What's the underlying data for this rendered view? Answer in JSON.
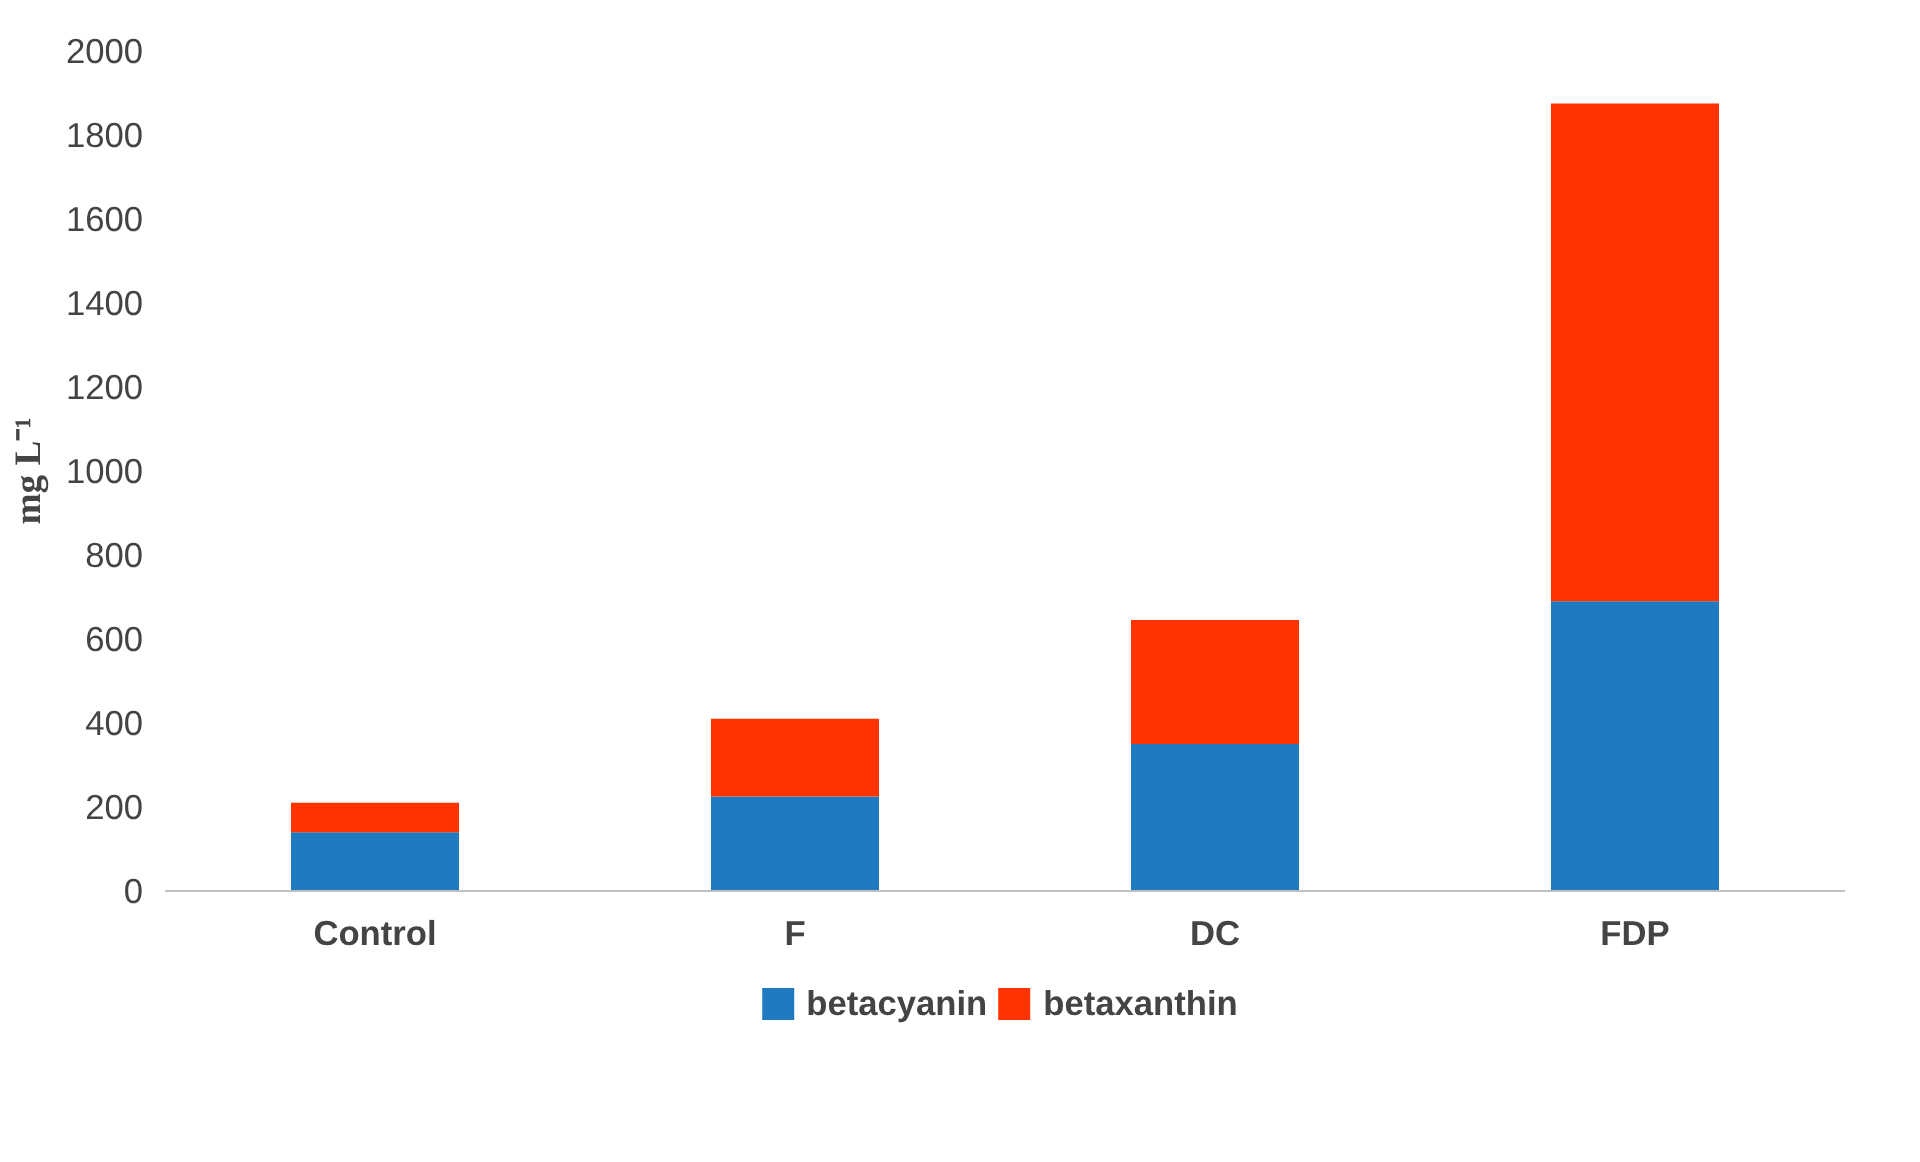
{
  "chart_data": {
    "type": "bar",
    "stacked": true,
    "ylabel": "mg L⁻¹",
    "categories": [
      "Control",
      "F",
      "DC",
      "FDP"
    ],
    "series": [
      {
        "name": "betacyanin",
        "color": "#1f7ac0",
        "values": [
          140,
          225,
          350,
          690
        ]
      },
      {
        "name": "betaxanthin",
        "color": "#ff3300",
        "values": [
          70,
          185,
          295,
          1185
        ]
      }
    ],
    "ylim": [
      0,
      2000
    ],
    "yticks": [
      0,
      200,
      400,
      600,
      800,
      1000,
      1200,
      1400,
      1600,
      1800,
      2000
    ],
    "grid": false,
    "legend": "bottom"
  }
}
